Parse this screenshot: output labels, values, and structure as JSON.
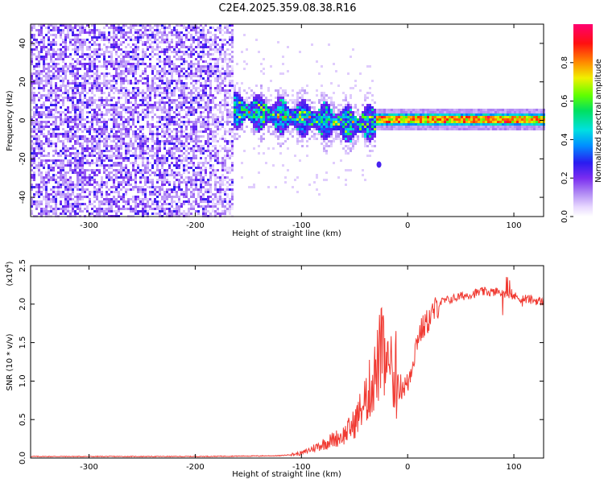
{
  "title": "C2E4.2025.359.08.38.R16",
  "colors": {
    "snr_line": "#f03a32",
    "axis": "#000000",
    "background": "#ffffff"
  },
  "chart_data": [
    {
      "type": "heatmap",
      "name": "spectrogram",
      "xlabel": "Height of straight line (km)",
      "ylabel": "Frequency (Hz)",
      "xlim": [
        -355,
        128
      ],
      "ylim": [
        -50,
        50
      ],
      "xticks": [
        -300,
        -200,
        -100,
        0,
        100
      ],
      "yticks": [
        -40,
        -20,
        0,
        20,
        40
      ],
      "colorbar": {
        "label": "Normalized spectral amplitude",
        "range": [
          0,
          1
        ],
        "ticks": [
          "0.0",
          "0.2",
          "0.4",
          "0.6",
          "0.8"
        ],
        "colormap": "rainbow (white-lavender-violet-blue-cyan-green-yellow-red-magenta)"
      },
      "regions": [
        {
          "x": [
            -355,
            -165
          ],
          "freq": [
            -50,
            50
          ],
          "amplitude": [
            0.05,
            0.3
          ],
          "description": "broadband noise"
        },
        {
          "x": [
            -165,
            -30
          ],
          "freq_center_start": 6,
          "freq_center_end": -3,
          "amplitude": [
            0.2,
            0.7
          ]
        },
        {
          "x": [
            -30,
            128
          ],
          "freq_center": 1,
          "freq_halfwidth": 2,
          "amplitude": [
            0.55,
            0.95
          ]
        }
      ]
    },
    {
      "type": "line",
      "name": "snr",
      "xlabel": "Height of straight line (km)",
      "ylabel": "SNR (10 * v/v)",
      "yscale_label": "(x10",
      "yscale_exponent": "4",
      "xlim": [
        -355,
        128
      ],
      "ylim": [
        0,
        2.5
      ],
      "xticks": [
        -300,
        -200,
        -100,
        0,
        100
      ],
      "yticks": [
        "0.0",
        "0.5",
        "1.0",
        "1.5",
        "2.0",
        "2.5"
      ],
      "profile": [
        [
          -355,
          0.02
        ],
        [
          -200,
          0.02
        ],
        [
          -120,
          0.03
        ],
        [
          -100,
          0.06
        ],
        [
          -80,
          0.18
        ],
        [
          -60,
          0.3
        ],
        [
          -50,
          0.45
        ],
        [
          -40,
          0.75
        ],
        [
          -30,
          1.1
        ],
        [
          -25,
          1.4
        ],
        [
          -15,
          0.9
        ],
        [
          0,
          0.95
        ],
        [
          10,
          1.6
        ],
        [
          20,
          1.8
        ],
        [
          30,
          2.02
        ],
        [
          50,
          2.1
        ],
        [
          70,
          2.16
        ],
        [
          90,
          2.15
        ],
        [
          105,
          2.08
        ],
        [
          128,
          2.03
        ]
      ]
    }
  ]
}
